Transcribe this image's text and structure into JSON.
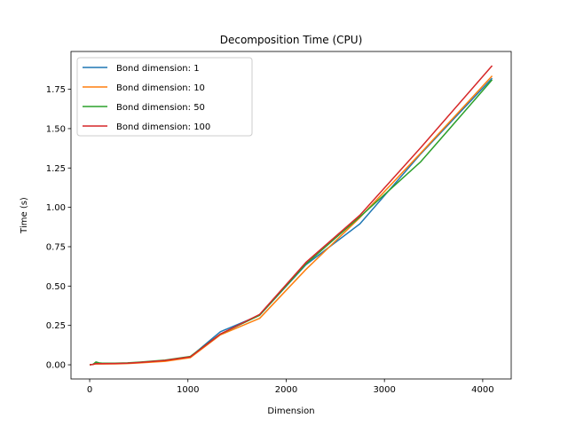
{
  "chart_data": {
    "type": "line",
    "title": "Decomposition Time (CPU)",
    "xlabel": "Dimension",
    "ylabel": "Time (s)",
    "xlim": [
      -190,
      4290
    ],
    "ylim": [
      -0.09,
      1.99
    ],
    "xticks": [
      0,
      1000,
      2000,
      3000,
      4000
    ],
    "xtick_labels": [
      "0",
      "1000",
      "2000",
      "3000",
      "4000"
    ],
    "yticks": [
      0.0,
      0.25,
      0.5,
      0.75,
      1.0,
      1.25,
      1.5,
      1.75
    ],
    "ytick_labels": [
      "0.00",
      "0.25",
      "0.50",
      "0.75",
      "1.00",
      "1.25",
      "1.50",
      "1.75"
    ],
    "grid": false,
    "legend_position": "upper-left",
    "series": [
      {
        "name": "Bond dimension: 1",
        "color": "#1f77b4",
        "x": [
          0,
          32,
          64,
          96,
          128,
          256,
          384,
          512,
          768,
          1024,
          1330,
          1730,
          2200,
          2750,
          3370,
          4096
        ],
        "y": [
          0.0,
          0.002,
          0.013,
          0.01,
          0.008,
          0.008,
          0.01,
          0.015,
          0.027,
          0.05,
          0.21,
          0.315,
          0.635,
          0.895,
          1.34,
          1.82
        ]
      },
      {
        "name": "Bond dimension: 10",
        "color": "#ff7f0e",
        "x": [
          0,
          32,
          64,
          96,
          128,
          256,
          384,
          512,
          768,
          1024,
          1330,
          1730,
          2200,
          2750,
          3370,
          4096
        ],
        "y": [
          0.0,
          0.002,
          0.006,
          0.005,
          0.005,
          0.006,
          0.008,
          0.012,
          0.022,
          0.045,
          0.19,
          0.295,
          0.605,
          0.935,
          1.345,
          1.835
        ]
      },
      {
        "name": "Bond dimension: 50",
        "color": "#2ca02c",
        "x": [
          0,
          32,
          64,
          96,
          128,
          256,
          384,
          512,
          768,
          1024,
          1330,
          1730,
          2200,
          2750,
          3370,
          4096
        ],
        "y": [
          0.0,
          0.002,
          0.018,
          0.012,
          0.01,
          0.01,
          0.012,
          0.017,
          0.03,
          0.053,
          0.195,
          0.315,
          0.64,
          0.94,
          1.29,
          1.81
        ]
      },
      {
        "name": "Bond dimension: 100",
        "color": "#d62728",
        "x": [
          0,
          32,
          64,
          96,
          128,
          256,
          384,
          512,
          768,
          1024,
          1330,
          1730,
          2200,
          2750,
          3370,
          4096
        ],
        "y": [
          0.0,
          0.002,
          0.008,
          0.007,
          0.007,
          0.008,
          0.01,
          0.015,
          0.028,
          0.05,
          0.195,
          0.32,
          0.65,
          0.95,
          1.38,
          1.9
        ]
      }
    ]
  }
}
